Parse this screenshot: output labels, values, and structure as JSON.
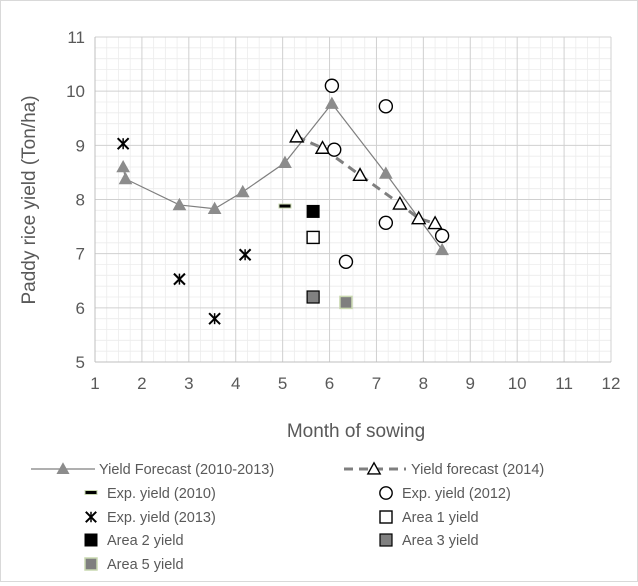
{
  "chart_data": {
    "type": "scatter",
    "xlabel": "Month of sowing",
    "ylabel": "Paddy rice yield (Ton/ha)",
    "xlim": [
      1,
      12
    ],
    "ylim": [
      5,
      11
    ],
    "xticks": [
      1,
      2,
      3,
      4,
      5,
      6,
      7,
      8,
      9,
      10,
      11,
      12
    ],
    "yticks": [
      5,
      6,
      7,
      8,
      9,
      10,
      11
    ],
    "grid": true,
    "legend_position": "bottom",
    "series": [
      {
        "name": "Yield Forecast (2010-2013)",
        "type": "line",
        "marker": "triangle-filled",
        "color": "#7f7f7f",
        "line_style": "solid",
        "points": [
          [
            1.6,
            8.6
          ],
          [
            1.65,
            8.38
          ],
          [
            2.8,
            7.9
          ],
          [
            3.55,
            7.83
          ],
          [
            4.15,
            8.14
          ],
          [
            5.05,
            8.68
          ],
          [
            6.05,
            9.77
          ],
          [
            7.2,
            8.48
          ],
          [
            8.4,
            7.07
          ]
        ]
      },
      {
        "name": "Yield forecast (2014)",
        "type": "line",
        "marker": "triangle-open",
        "color": "#7f7f7f",
        "line_style": "dashed",
        "points": [
          [
            5.3,
            9.16
          ],
          [
            5.85,
            8.95
          ],
          [
            6.65,
            8.45
          ],
          [
            7.5,
            7.92
          ],
          [
            7.9,
            7.65
          ],
          [
            8.25,
            7.56
          ]
        ]
      },
      {
        "name": "Exp. yield (2010)",
        "type": "scatter",
        "marker": "dash",
        "color": "#000000",
        "points": [
          [
            5.05,
            7.87
          ]
        ]
      },
      {
        "name": "Exp. yield (2012)",
        "type": "scatter",
        "marker": "circle-open",
        "color": "#000000",
        "points": [
          [
            6.05,
            10.1
          ],
          [
            6.1,
            8.92
          ],
          [
            6.35,
            6.85
          ],
          [
            7.2,
            9.72
          ],
          [
            7.2,
            7.57
          ],
          [
            8.4,
            7.33
          ]
        ]
      },
      {
        "name": "Exp. yield (2013)",
        "type": "scatter",
        "marker": "star",
        "color": "#000000",
        "points": [
          [
            1.6,
            9.03
          ],
          [
            2.8,
            6.53
          ],
          [
            3.55,
            5.8
          ],
          [
            4.2,
            6.98
          ]
        ]
      },
      {
        "name": "Area 1 yield",
        "type": "scatter",
        "marker": "square-open",
        "color": "#000000",
        "points": [
          [
            5.65,
            7.3
          ]
        ]
      },
      {
        "name": "Area 2 yield",
        "type": "scatter",
        "marker": "square-filled",
        "color": "#000000",
        "points": [
          [
            5.65,
            7.78
          ]
        ]
      },
      {
        "name": "Area 3 yield",
        "type": "scatter",
        "marker": "square-gray",
        "color": "#808080",
        "points": [
          [
            5.65,
            6.2
          ]
        ]
      },
      {
        "name": "Area 5 yield",
        "type": "scatter",
        "marker": "square-dark",
        "color": "#7f7f7f",
        "points": [
          [
            6.35,
            6.1
          ]
        ]
      }
    ]
  }
}
